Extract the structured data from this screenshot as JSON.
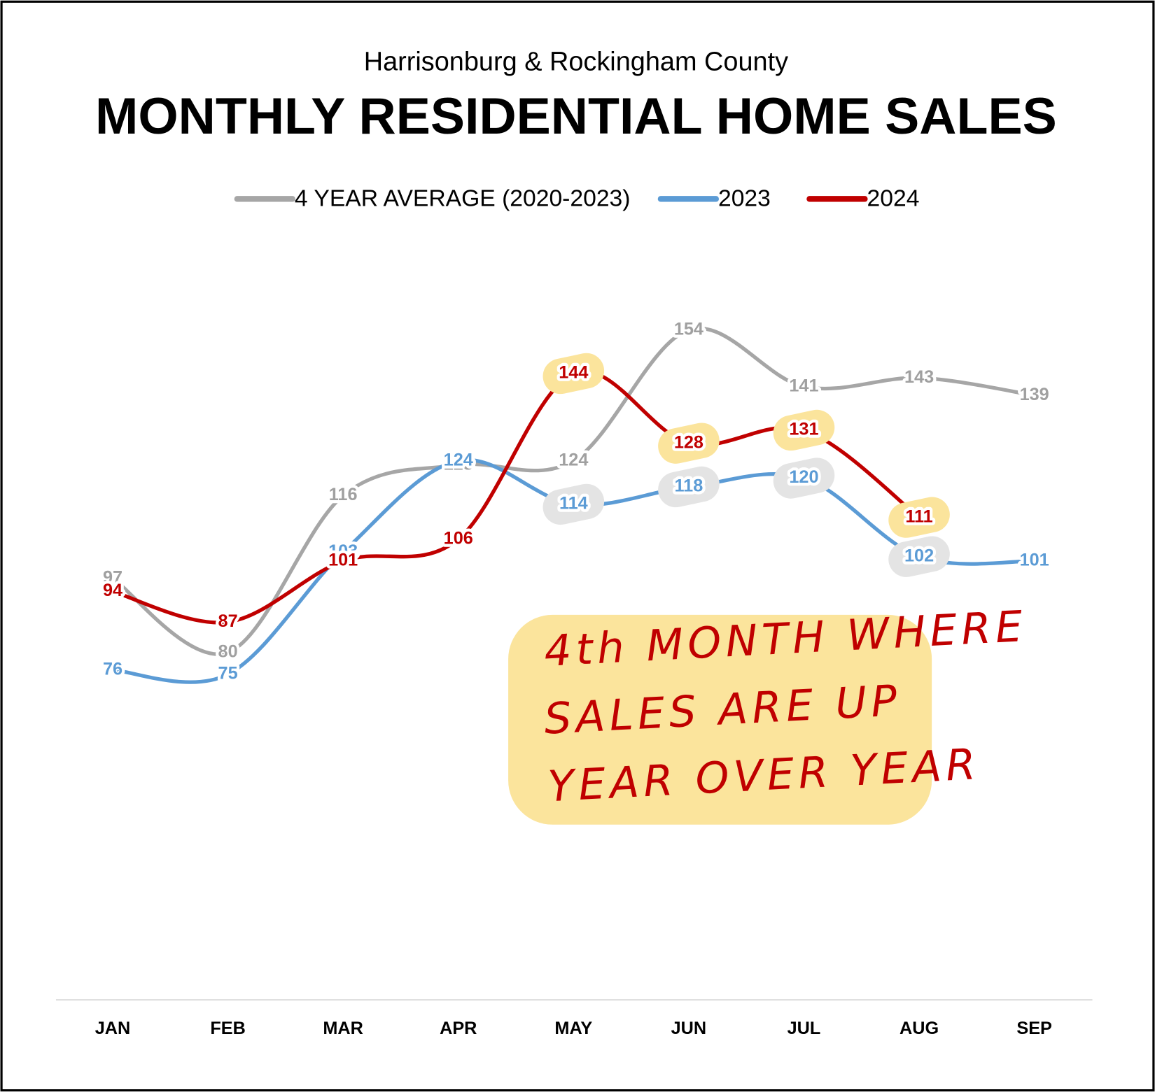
{
  "chart_data": {
    "type": "line",
    "subtitle": "Harrisonburg & Rockingham County",
    "title": "MONTHLY RESIDENTIAL HOME SALES",
    "categories": [
      "JAN",
      "FEB",
      "MAR",
      "APR",
      "MAY",
      "JUN",
      "JUL",
      "AUG",
      "SEP"
    ],
    "series": [
      {
        "name": "4 YEAR AVERAGE (2020-2023)",
        "color": "#a6a6a6",
        "values": [
          97,
          80,
          116,
          123,
          124,
          154,
          141,
          143,
          139
        ]
      },
      {
        "name": "2023",
        "color": "#5b9bd5",
        "values": [
          76,
          75,
          103,
          124,
          114,
          118,
          120,
          102,
          101
        ]
      },
      {
        "name": "2024",
        "color": "#c00000",
        "values": [
          94,
          87,
          101,
          106,
          144,
          128,
          131,
          111,
          null
        ]
      }
    ],
    "ylim": [
      0,
      180
    ],
    "annotation": [
      "4th MONTH WHERE",
      "SALES ARE UP",
      "YEAR OVER YEAR"
    ]
  }
}
